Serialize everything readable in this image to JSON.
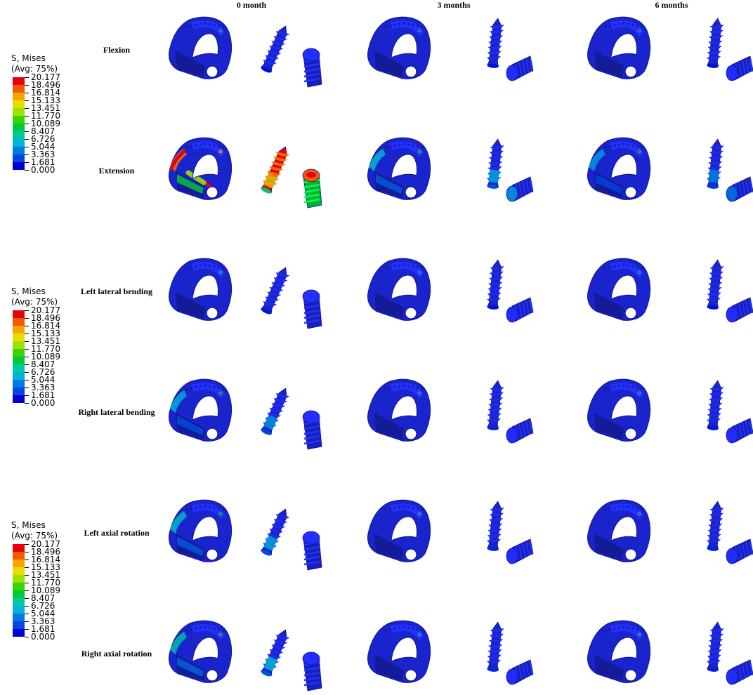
{
  "columns": [
    "0 month",
    "3 months",
    "6 months"
  ],
  "rows": [
    "Flexion",
    "Extension",
    "Left lateral bending",
    "Right lateral bending",
    "Left axial rotation",
    "Right axial rotation"
  ],
  "legend": {
    "title_line1": "S, Mises",
    "title_line2": "(Avg: 75%)",
    "values": [
      "20.177",
      "18.496",
      "16.814",
      "15.133",
      "13.451",
      "11.770",
      "10.089",
      "8.407",
      "6.726",
      "5.044",
      "3.363",
      "1.681",
      "0.000"
    ],
    "colors": [
      "#e8000b",
      "#f25a00",
      "#f7a400",
      "#e8dd00",
      "#9ee000",
      "#39d400",
      "#00c83a",
      "#00c8a0",
      "#00b4d6",
      "#0078e6",
      "#0046e0",
      "#0000d2"
    ]
  },
  "stress_levels": [
    [
      0.06,
      0.05,
      0.05
    ],
    [
      0.55,
      0.22,
      0.18
    ],
    [
      0.08,
      0.05,
      0.05
    ],
    [
      0.2,
      0.1,
      0.08
    ],
    [
      0.22,
      0.12,
      0.1
    ],
    [
      0.24,
      0.12,
      0.1
    ]
  ]
}
